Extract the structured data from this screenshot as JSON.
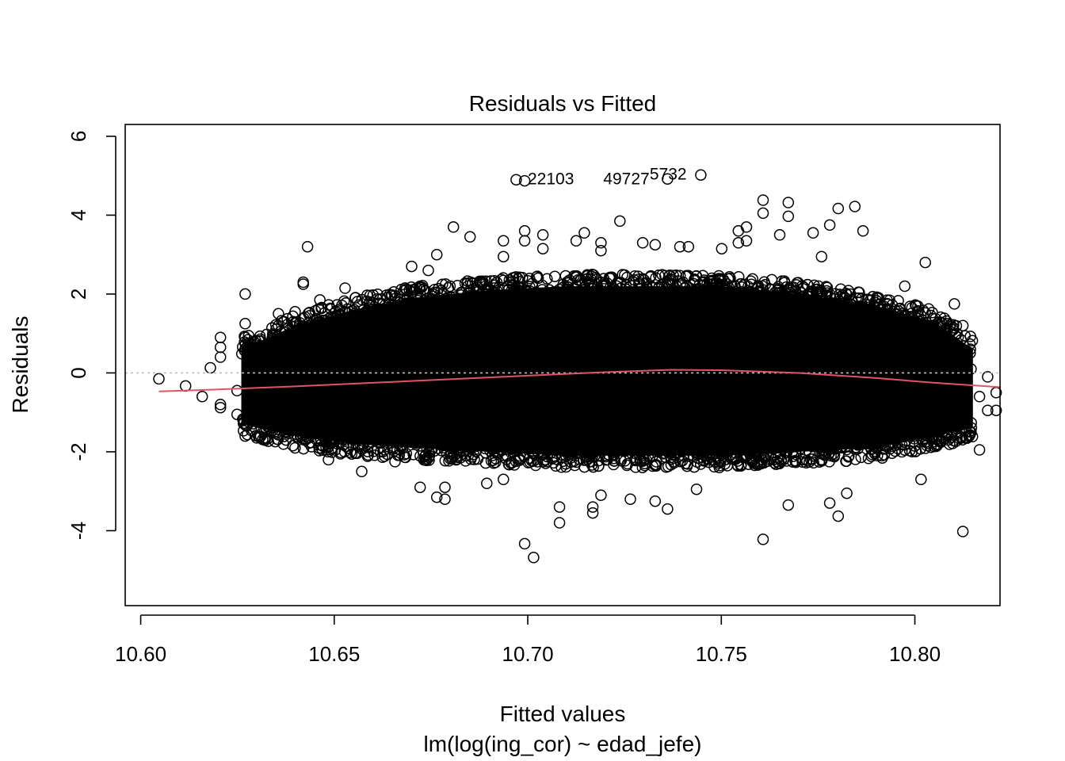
{
  "chart_data": {
    "type": "scatter",
    "title": "Residuals vs Fitted",
    "xlabel": "Fitted values",
    "sublabel": "lm(log(ing_cor) ~ edad_jefe)",
    "ylabel": "Residuals",
    "xlim": [
      10.596,
      10.822
    ],
    "ylim": [
      -5.9,
      6.3
    ],
    "x_ticks": [
      "10.60",
      "10.65",
      "10.70",
      "10.75",
      "10.80"
    ],
    "x_tick_values": [
      10.6,
      10.65,
      10.7,
      10.75,
      10.8
    ],
    "y_ticks": [
      "-4",
      "-2",
      "0",
      "2",
      "4",
      "6"
    ],
    "y_tick_values": [
      -4,
      -2,
      0,
      2,
      4,
      6
    ],
    "zero_line": {
      "y": 0,
      "color": "#bebebe",
      "style": "dotted"
    },
    "point_color": "#000000",
    "smooth_color": "#DF536B",
    "dense_band_note": "Tens of thousands of overlapping points form a solid black band; spread is approximately residual -1.7..+1.6 at fitted 10.63 widening to about -2.2..+2.2 near fitted 10.70-10.76.",
    "dense_band": {
      "x": [
        10.626,
        10.64,
        10.655,
        10.67,
        10.69,
        10.71,
        10.73,
        10.75,
        10.77,
        10.79,
        10.805,
        10.815
      ],
      "upper": [
        0.6,
        1.2,
        1.6,
        1.9,
        2.1,
        2.2,
        2.2,
        2.2,
        2.0,
        1.7,
        1.3,
        0.6
      ],
      "lower": [
        -1.3,
        -1.6,
        -1.8,
        -1.9,
        -2.0,
        -2.1,
        -2.1,
        -2.1,
        -2.0,
        -1.9,
        -1.6,
        -1.4
      ]
    },
    "outliers": [
      {
        "x": 10.6047,
        "y": -0.15
      },
      {
        "x": 10.6116,
        "y": -0.33
      },
      {
        "x": 10.6159,
        "y": -0.6
      },
      {
        "x": 10.618,
        "y": 0.13
      },
      {
        "x": 10.6206,
        "y": 0.9
      },
      {
        "x": 10.6206,
        "y": 0.65
      },
      {
        "x": 10.6206,
        "y": 0.4
      },
      {
        "x": 10.6206,
        "y": -0.8
      },
      {
        "x": 10.6206,
        "y": -0.88
      },
      {
        "x": 10.6249,
        "y": -0.45
      },
      {
        "x": 10.6249,
        "y": -1.05
      },
      {
        "x": 10.627,
        "y": 2.0
      },
      {
        "x": 10.627,
        "y": 1.25
      },
      {
        "x": 10.627,
        "y": 0.9
      },
      {
        "x": 10.627,
        "y": -1.6
      },
      {
        "x": 10.6356,
        "y": 1.5
      },
      {
        "x": 10.6399,
        "y": 1.55
      },
      {
        "x": 10.6399,
        "y": -1.9
      },
      {
        "x": 10.642,
        "y": 2.3
      },
      {
        "x": 10.642,
        "y": 2.25
      },
      {
        "x": 10.6431,
        "y": 3.2
      },
      {
        "x": 10.6463,
        "y": 1.85
      },
      {
        "x": 10.6485,
        "y": -2.2
      },
      {
        "x": 10.6528,
        "y": 2.15
      },
      {
        "x": 10.6571,
        "y": -2.5
      },
      {
        "x": 10.6657,
        "y": -2.25
      },
      {
        "x": 10.67,
        "y": 2.7
      },
      {
        "x": 10.6722,
        "y": -2.9
      },
      {
        "x": 10.6743,
        "y": 2.6
      },
      {
        "x": 10.6765,
        "y": 3.0
      },
      {
        "x": 10.6765,
        "y": -3.15
      },
      {
        "x": 10.6786,
        "y": -3.2
      },
      {
        "x": 10.6786,
        "y": -2.9
      },
      {
        "x": 10.6808,
        "y": 3.7
      },
      {
        "x": 10.6851,
        "y": 3.45
      },
      {
        "x": 10.6894,
        "y": -2.8
      },
      {
        "x": 10.6937,
        "y": 3.35
      },
      {
        "x": 10.6937,
        "y": 2.95
      },
      {
        "x": 10.6937,
        "y": -2.7
      },
      {
        "x": 10.6992,
        "y": 3.6
      },
      {
        "x": 10.6992,
        "y": 3.35
      },
      {
        "x": 10.6992,
        "y": -4.33
      },
      {
        "x": 10.7015,
        "y": -4.68
      },
      {
        "x": 10.7039,
        "y": 3.5
      },
      {
        "x": 10.7039,
        "y": 3.15
      },
      {
        "x": 10.7082,
        "y": -3.4
      },
      {
        "x": 10.7082,
        "y": -3.8
      },
      {
        "x": 10.7125,
        "y": 3.35
      },
      {
        "x": 10.7146,
        "y": 3.55
      },
      {
        "x": 10.7168,
        "y": -3.4
      },
      {
        "x": 10.7168,
        "y": -3.55
      },
      {
        "x": 10.7189,
        "y": 3.3
      },
      {
        "x": 10.7189,
        "y": 3.1
      },
      {
        "x": 10.7189,
        "y": -3.1
      },
      {
        "x": 10.7238,
        "y": 3.85
      },
      {
        "x": 10.7265,
        "y": -3.2
      },
      {
        "x": 10.7297,
        "y": 3.3
      },
      {
        "x": 10.7329,
        "y": 3.25
      },
      {
        "x": 10.7329,
        "y": -3.25
      },
      {
        "x": 10.7361,
        "y": -3.45
      },
      {
        "x": 10.7393,
        "y": 3.2
      },
      {
        "x": 10.7415,
        "y": 3.2
      },
      {
        "x": 10.7436,
        "y": -2.95
      },
      {
        "x": 10.7501,
        "y": 3.15
      },
      {
        "x": 10.7544,
        "y": 3.6
      },
      {
        "x": 10.7544,
        "y": 3.3
      },
      {
        "x": 10.7565,
        "y": 3.7
      },
      {
        "x": 10.7565,
        "y": 3.35
      },
      {
        "x": 10.7608,
        "y": 4.38
      },
      {
        "x": 10.7608,
        "y": 4.05
      },
      {
        "x": 10.7608,
        "y": -4.22
      },
      {
        "x": 10.7651,
        "y": 3.5
      },
      {
        "x": 10.7673,
        "y": 4.32
      },
      {
        "x": 10.7673,
        "y": 3.97
      },
      {
        "x": 10.7673,
        "y": -3.35
      },
      {
        "x": 10.7737,
        "y": 3.55
      },
      {
        "x": 10.7759,
        "y": 2.95
      },
      {
        "x": 10.778,
        "y": 3.75
      },
      {
        "x": 10.778,
        "y": -3.3
      },
      {
        "x": 10.7802,
        "y": 4.17
      },
      {
        "x": 10.7802,
        "y": -3.63
      },
      {
        "x": 10.7845,
        "y": 4.22
      },
      {
        "x": 10.7866,
        "y": 3.6
      },
      {
        "x": 10.7824,
        "y": -3.05
      },
      {
        "x": 10.7974,
        "y": 2.2
      },
      {
        "x": 10.8016,
        "y": -2.7
      },
      {
        "x": 10.8027,
        "y": 2.8
      },
      {
        "x": 10.8102,
        "y": 1.75
      },
      {
        "x": 10.8124,
        "y": 1.2
      },
      {
        "x": 10.8124,
        "y": -4.02
      },
      {
        "x": 10.8135,
        "y": 0.55
      },
      {
        "x": 10.8145,
        "y": 0.1
      },
      {
        "x": 10.8145,
        "y": -1.5
      },
      {
        "x": 10.8167,
        "y": -1.95
      },
      {
        "x": 10.8167,
        "y": -0.6
      },
      {
        "x": 10.8188,
        "y": -0.1
      },
      {
        "x": 10.8188,
        "y": -0.95
      },
      {
        "x": 10.821,
        "y": -0.5
      },
      {
        "x": 10.821,
        "y": -0.95
      }
    ],
    "labeled_points": [
      {
        "x": 10.697,
        "y": 4.9
      },
      {
        "x": 10.6992,
        "y": 4.87
      },
      {
        "x": 10.7361,
        "y": 4.92
      },
      {
        "x": 10.7447,
        "y": 5.02
      }
    ],
    "point_labels": [
      "22103",
      "49727",
      "5732"
    ],
    "point_label_anchor": [
      {
        "x": 10.7,
        "y": 4.92
      },
      {
        "x": 10.7195,
        "y": 4.92
      },
      {
        "x": 10.7315,
        "y": 5.04
      }
    ],
    "smooth": {
      "x": [
        10.6047,
        10.62,
        10.64,
        10.66,
        10.68,
        10.7,
        10.72,
        10.737,
        10.75,
        10.77,
        10.79,
        10.805,
        10.822
      ],
      "y": [
        -0.47,
        -0.42,
        -0.34,
        -0.25,
        -0.16,
        -0.07,
        0.02,
        0.08,
        0.07,
        0.0,
        -0.13,
        -0.25,
        -0.36
      ]
    }
  }
}
